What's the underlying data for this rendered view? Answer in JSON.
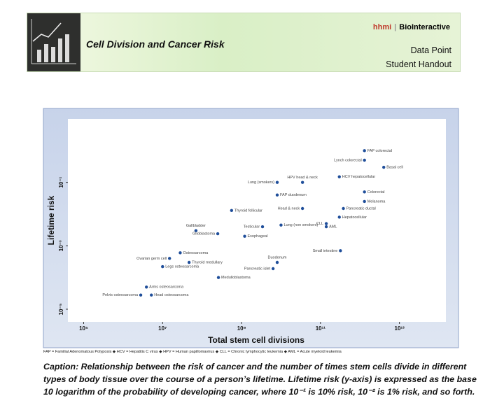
{
  "header": {
    "title": "Cell Division and Cancer Risk",
    "brand_prefix": "hhmi",
    "brand": "BioInteractive",
    "line1": "Data Point",
    "line2": "Student Handout"
  },
  "chart_data": {
    "type": "scatter",
    "x_label": "Total stem cell divisions",
    "y_label": "Lifetime risk",
    "x_scale": "log",
    "y_scale": "log",
    "color": "#1f4e9a",
    "xlim": [
      40000,
      150000000000000
    ],
    "ylim": [
      4e-06,
      10
    ],
    "xticks": [
      {
        "value": 100000,
        "label": "10⁵"
      },
      {
        "value": 10000000,
        "label": "10⁷"
      },
      {
        "value": 1000000000,
        "label": "10⁹"
      },
      {
        "value": 100000000000,
        "label": "10¹¹"
      },
      {
        "value": 10000000000000,
        "label": "10¹³"
      }
    ],
    "yticks": [
      {
        "value": 0.1,
        "label": "10⁻¹"
      },
      {
        "value": 0.001,
        "label": "10⁻³"
      },
      {
        "value": 1e-05,
        "label": "10⁻⁵"
      }
    ],
    "labels": [
      "FAP colorectal",
      "Lynch colorectal",
      "Basal cell",
      "HPV head & neck",
      "HCV hepatocellular",
      "Lung (smokers)",
      "Colorectal",
      "FAP duodenum",
      "Melanoma",
      "Pancreatic ductal",
      "Head & neck",
      "Thyroid follicular",
      "Hepatocellular",
      "Lung (non smokers)",
      "CLL",
      "AML",
      "Testicular",
      "Gallbladder",
      "Glioblastoma",
      "Esophageal",
      "Osteosarcoma",
      "Small intestine",
      "Ovarian germ cell",
      "Thyroid medullary",
      "Duodenum",
      "Legs osteosarcoma",
      "Pancreatic islet",
      "Medulloblastoma",
      "Arms osteosarcoma",
      "Pelvis osteosarcoma",
      "Head osteosarcoma"
    ],
    "x": [
      1300000000000,
      1300000000000,
      4000000000000,
      35000000000,
      300000000000,
      8000000000,
      1300000000000,
      8000000000,
      1300000000000,
      380000000000,
      35000000000,
      560000000,
      300000000000,
      10000000000,
      140000000000,
      140000000000,
      3400000000,
      70000000,
      250000000,
      1200000000,
      28000000,
      320000000000,
      15000000,
      47000000,
      8000000000,
      10000000,
      6300000000,
      260000000,
      3900000,
      2800000,
      5200000
    ],
    "values": [
      1,
      0.5,
      0.3,
      0.1,
      0.15,
      0.1,
      0.05,
      0.04,
      0.025,
      0.015,
      0.015,
      0.013,
      0.008,
      0.0045,
      0.005,
      0.004,
      0.004,
      0.003,
      0.0024,
      0.002,
      0.0006,
      0.0007,
      0.0004,
      0.0003,
      0.0003,
      0.00022,
      0.00019,
      0.0001,
      5e-05,
      2.8e-05,
      2.8e-05
    ]
  },
  "footnote": "FAP = Familial Adenomatous Polyposis ◆ HCV = Hepatitis C virus ◆ HPV = Human papillomavirus ◆ CLL = Chronic lymphocytic leukemia ◆ AML = Acute myeloid leukemia",
  "caption": "Caption: Relationship between the risk of cancer and the number of times stem cells divide in different types of body tissue over the course of a person’s lifetime. Lifetime risk (y-axis) is expressed as the base 10 logarithm of the probability of developing cancer, where 10⁻¹ is 10% risk, 10⁻² is 1% risk, and so forth."
}
